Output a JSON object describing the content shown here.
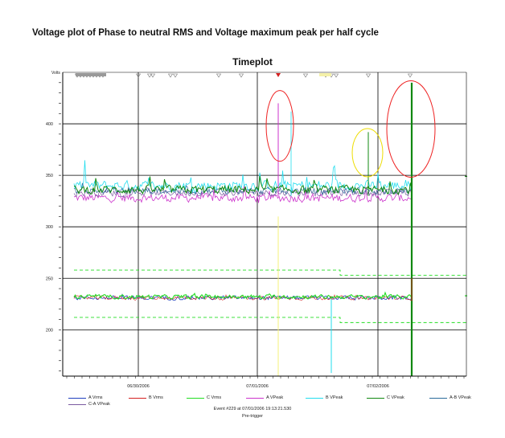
{
  "page": {
    "title": "Voltage plot of Phase to neutral RMS and Voltage maximum peak per half cycle"
  },
  "chart_data": {
    "type": "line",
    "title": "Timeplot",
    "ylabel": "Volts",
    "ylim": [
      155,
      450
    ],
    "yticks": [
      200,
      250,
      300,
      350,
      400
    ],
    "x_ticks": [
      "06/30/2006",
      "07/01/2006",
      "07/02/2006"
    ],
    "grid": true,
    "legend_position": "bottom",
    "series": [
      {
        "name": "A Vrms",
        "color": "#1f3fbf",
        "level": 231
      },
      {
        "name": "B Vrms",
        "color": "#d42020",
        "level": 231
      },
      {
        "name": "C Vrms",
        "color": "#22dd22",
        "level": 232
      },
      {
        "name": "A VPeak",
        "color": "#cc33cc",
        "level": 328
      },
      {
        "name": "B VPeak",
        "color": "#22ddee",
        "level": 340
      },
      {
        "name": "C VPeak",
        "color": "#118811",
        "level": 336
      },
      {
        "name": "A-B VPeak",
        "color": "#2a6a9a",
        "level": 335
      },
      {
        "name": "C-A VPeak",
        "color": "#7a5aa0",
        "level": 333
      }
    ],
    "thresholds": [
      {
        "color": "#22dd22",
        "values_left": 258,
        "values_right": 253
      },
      {
        "color": "#22dd22",
        "values_left": 212,
        "values_right": 207
      }
    ],
    "spikes": [
      {
        "label": "A VPeak",
        "color": "#cc33cc",
        "value": 420
      },
      {
        "label": "B VPeak",
        "color": "#22ddee",
        "value": 412
      },
      {
        "label": "C VPeak",
        "color": "#118811",
        "value": 392
      },
      {
        "label": "C VPeak",
        "color": "#118811",
        "value": 440
      }
    ]
  },
  "footer": {
    "event": "Event #229 at 07/01/2006 19:13:21.530",
    "trigger": "Pre-trigger"
  },
  "colors": {
    "highlight_red": "#ee2222",
    "highlight_yellow": "#eedd00",
    "marker_gray": "#888888"
  }
}
